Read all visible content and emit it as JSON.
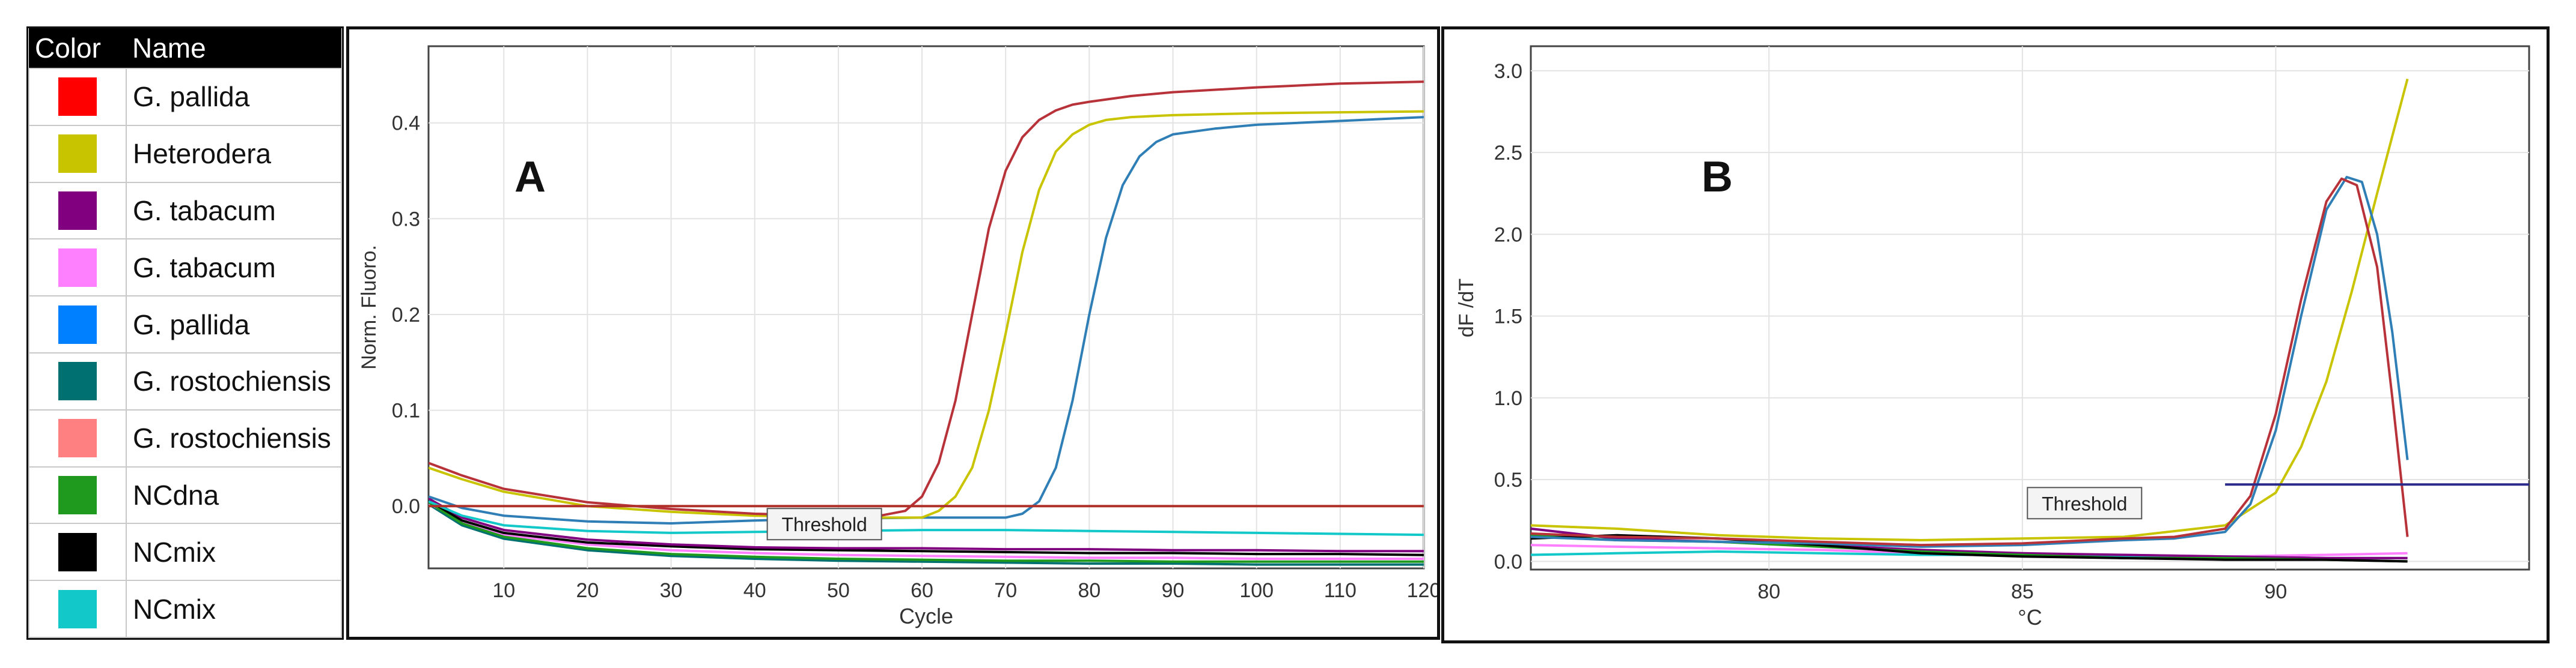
{
  "legend": {
    "headers": [
      "Color",
      "Name"
    ],
    "items": [
      {
        "name": "G. pallida",
        "color": "#ff0000"
      },
      {
        "name": "Heterodera",
        "color": "#c9c400"
      },
      {
        "name": "G. tabacum",
        "color": "#800080"
      },
      {
        "name": "G. tabacum",
        "color": "#ff80ff"
      },
      {
        "name": "G. pallida",
        "color": "#0080ff"
      },
      {
        "name": "G. rostochiensis",
        "color": "#007070"
      },
      {
        "name": "G. rostochiensis",
        "color": "#ff8080"
      },
      {
        "name": "NCdna",
        "color": "#1f9a1f"
      },
      {
        "name": "NCmix",
        "color": "#000000"
      },
      {
        "name": "NCmix",
        "color": "#12c8c8"
      }
    ]
  },
  "chart_data": [
    {
      "type": "line",
      "panel_label": "A",
      "xlabel": "Cycle",
      "ylabel": "Norm. Fluoro.",
      "xlim": [
        1,
        120
      ],
      "ylim": [
        -0.065,
        0.48
      ],
      "x_ticks": [
        10,
        20,
        30,
        40,
        50,
        60,
        70,
        80,
        90,
        100,
        110,
        120
      ],
      "y_ticks": [
        0.0,
        0.1,
        0.2,
        0.3,
        0.4
      ],
      "threshold": {
        "label": "Threshold",
        "y": 0.0,
        "color": "#b0302a"
      },
      "series": [
        {
          "color": "#b8323a",
          "x": [
            1,
            5,
            10,
            20,
            30,
            40,
            50,
            55,
            58,
            60,
            62,
            64,
            66,
            68,
            70,
            72,
            74,
            76,
            78,
            80,
            85,
            90,
            100,
            110,
            120
          ],
          "y": [
            0.045,
            0.032,
            0.018,
            0.004,
            -0.003,
            -0.008,
            -0.01,
            -0.01,
            -0.005,
            0.01,
            0.045,
            0.11,
            0.2,
            0.29,
            0.35,
            0.385,
            0.403,
            0.413,
            0.419,
            0.422,
            0.428,
            0.432,
            0.437,
            0.441,
            0.443
          ]
        },
        {
          "color": "#c9c400",
          "x": [
            1,
            5,
            10,
            20,
            30,
            40,
            50,
            60,
            62,
            64,
            66,
            68,
            70,
            72,
            74,
            76,
            78,
            80,
            82,
            85,
            90,
            100,
            110,
            120
          ],
          "y": [
            0.04,
            0.028,
            0.015,
            0.0,
            -0.006,
            -0.01,
            -0.012,
            -0.012,
            -0.005,
            0.01,
            0.04,
            0.1,
            0.18,
            0.265,
            0.33,
            0.37,
            0.388,
            0.398,
            0.403,
            0.406,
            0.408,
            0.41,
            0.411,
            0.412
          ]
        },
        {
          "color": "#2f7fb6",
          "x": [
            1,
            5,
            10,
            20,
            30,
            40,
            50,
            60,
            70,
            72,
            74,
            76,
            78,
            80,
            82,
            84,
            86,
            88,
            90,
            95,
            100,
            110,
            120
          ],
          "y": [
            0.01,
            -0.002,
            -0.01,
            -0.016,
            -0.018,
            -0.015,
            -0.013,
            -0.012,
            -0.012,
            -0.008,
            0.005,
            0.04,
            0.11,
            0.2,
            0.28,
            0.335,
            0.365,
            0.38,
            0.388,
            0.394,
            0.398,
            0.402,
            0.406
          ]
        },
        {
          "color": "#12c8c8",
          "x": [
            1,
            5,
            10,
            20,
            30,
            40,
            50,
            60,
            70,
            80,
            90,
            100,
            110,
            120
          ],
          "y": [
            0.005,
            -0.01,
            -0.02,
            -0.026,
            -0.028,
            -0.027,
            -0.026,
            -0.025,
            -0.025,
            -0.026,
            -0.027,
            -0.028,
            -0.029,
            -0.03
          ]
        },
        {
          "color": "#800080",
          "x": [
            1,
            5,
            10,
            20,
            30,
            40,
            50,
            60,
            70,
            80,
            90,
            100,
            110,
            120
          ],
          "y": [
            0.008,
            -0.012,
            -0.025,
            -0.035,
            -0.04,
            -0.043,
            -0.044,
            -0.044,
            -0.045,
            -0.045,
            -0.046,
            -0.046,
            -0.047,
            -0.047
          ]
        },
        {
          "color": "#000000",
          "x": [
            1,
            5,
            10,
            20,
            30,
            40,
            50,
            60,
            70,
            80,
            90,
            100,
            110,
            120
          ],
          "y": [
            0.006,
            -0.015,
            -0.028,
            -0.038,
            -0.042,
            -0.045,
            -0.046,
            -0.047,
            -0.048,
            -0.049,
            -0.049,
            -0.05,
            -0.05,
            -0.051
          ]
        },
        {
          "color": "#1f9a1f",
          "x": [
            1,
            5,
            10,
            20,
            30,
            40,
            50,
            60,
            70,
            80,
            90,
            100,
            110,
            120
          ],
          "y": [
            0.004,
            -0.018,
            -0.032,
            -0.044,
            -0.05,
            -0.053,
            -0.055,
            -0.056,
            -0.057,
            -0.057,
            -0.058,
            -0.058,
            -0.058,
            -0.058
          ]
        },
        {
          "color": "#ff80ff",
          "x": [
            1,
            5,
            10,
            20,
            30,
            40,
            50,
            60,
            70,
            80,
            90,
            100,
            110,
            120
          ],
          "y": [
            0.003,
            -0.016,
            -0.03,
            -0.04,
            -0.046,
            -0.049,
            -0.051,
            -0.052,
            -0.053,
            -0.054,
            -0.054,
            -0.055,
            -0.055,
            -0.055
          ]
        },
        {
          "color": "#007070",
          "x": [
            1,
            5,
            10,
            20,
            30,
            40,
            50,
            60,
            70,
            80,
            90,
            100,
            110,
            120
          ],
          "y": [
            0.002,
            -0.02,
            -0.034,
            -0.046,
            -0.052,
            -0.055,
            -0.057,
            -0.058,
            -0.059,
            -0.06,
            -0.06,
            -0.061,
            -0.061,
            -0.061
          ]
        }
      ]
    },
    {
      "type": "line",
      "panel_label": "B",
      "xlabel": "°C",
      "ylabel": "dF /dT",
      "xlim": [
        75.3,
        95.0
      ],
      "ylim": [
        -0.05,
        3.15
      ],
      "x_ticks": [
        80,
        85,
        90
      ],
      "y_ticks": [
        0.0,
        0.5,
        1.0,
        1.5,
        2.0,
        2.5,
        3.0
      ],
      "y_tick_labels": [
        "0.0",
        "0.5",
        "1.0",
        "1.5",
        "2.0",
        "2.5",
        "3.0"
      ],
      "threshold": {
        "label": "Threshold",
        "y": 0.47,
        "color": "#2a2a8a"
      },
      "series": [
        {
          "color": "#b8323a",
          "x": [
            75.3,
            77,
            79,
            81,
            83,
            85,
            87,
            88,
            89,
            89.5,
            90,
            90.5,
            91,
            91.3,
            91.6,
            92,
            92.3,
            92.6
          ],
          "y": [
            0.17,
            0.15,
            0.14,
            0.12,
            0.1,
            0.11,
            0.14,
            0.15,
            0.2,
            0.4,
            0.9,
            1.6,
            2.2,
            2.34,
            2.3,
            1.8,
            1.0,
            0.15
          ]
        },
        {
          "color": "#2f7fb6",
          "x": [
            75.3,
            77,
            79,
            81,
            83,
            85,
            87,
            88,
            89,
            89.5,
            90,
            90.5,
            91,
            91.4,
            91.7,
            92,
            92.3,
            92.6
          ],
          "y": [
            0.15,
            0.13,
            0.12,
            0.11,
            0.09,
            0.1,
            0.13,
            0.14,
            0.18,
            0.35,
            0.8,
            1.5,
            2.15,
            2.35,
            2.32,
            2.0,
            1.4,
            0.62
          ]
        },
        {
          "color": "#c9c400",
          "x": [
            75.3,
            77,
            79,
            81,
            83,
            85,
            87,
            89,
            90,
            90.5,
            91,
            91.5,
            92,
            92.6
          ],
          "y": [
            0.22,
            0.2,
            0.16,
            0.14,
            0.13,
            0.14,
            0.15,
            0.22,
            0.42,
            0.7,
            1.1,
            1.65,
            2.25,
            2.95
          ]
        },
        {
          "color": "#000000",
          "x": [
            75.3,
            77,
            79,
            81,
            83,
            85,
            87,
            89,
            91,
            92.6
          ],
          "y": [
            0.14,
            0.16,
            0.14,
            0.1,
            0.05,
            0.03,
            0.02,
            0.01,
            0.01,
            0.0
          ]
        },
        {
          "color": "#1f9a1f",
          "x": [
            75.3,
            77,
            79,
            81,
            83,
            85,
            87,
            89,
            91,
            92.6
          ],
          "y": [
            0.16,
            0.13,
            0.12,
            0.09,
            0.06,
            0.04,
            0.02,
            0.02,
            0.01,
            0.0
          ]
        },
        {
          "color": "#800080",
          "x": [
            75.3,
            77,
            79,
            81,
            83,
            85,
            87,
            89,
            91,
            92.6
          ],
          "y": [
            0.2,
            0.14,
            0.12,
            0.1,
            0.07,
            0.05,
            0.04,
            0.03,
            0.02,
            0.02
          ]
        },
        {
          "color": "#12c8c8",
          "x": [
            75.3,
            77,
            79,
            81,
            83,
            85,
            87,
            89,
            91,
            92.6
          ],
          "y": [
            0.04,
            0.05,
            0.06,
            0.05,
            0.04,
            0.04,
            0.03,
            0.03,
            0.02,
            0.02
          ]
        },
        {
          "color": "#ff80ff",
          "x": [
            75.3,
            77,
            79,
            81,
            83,
            85,
            87,
            89,
            91,
            92.6
          ],
          "y": [
            0.1,
            0.09,
            0.08,
            0.07,
            0.05,
            0.04,
            0.04,
            0.03,
            0.04,
            0.05
          ]
        }
      ]
    }
  ]
}
